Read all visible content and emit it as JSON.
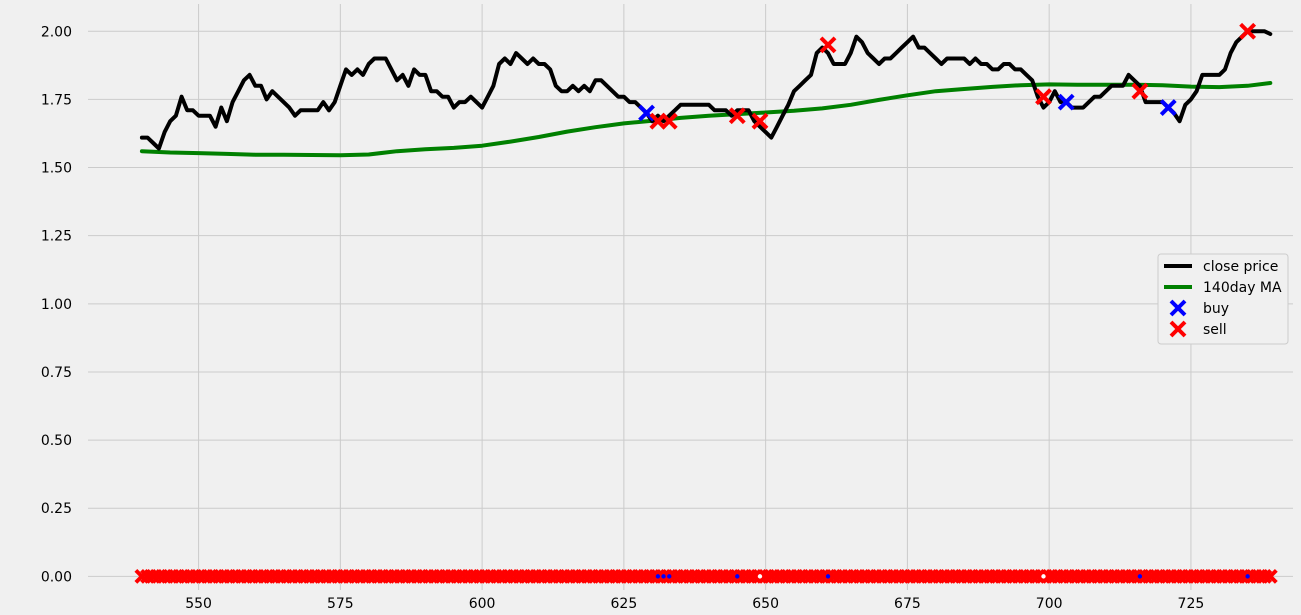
{
  "chart_data": {
    "type": "line",
    "style": "fivethirtyeight",
    "grid": true,
    "legend_position": "right",
    "xlim": [
      538,
      1.0
    ],
    "ylim": [
      -0.1,
      2.1
    ],
    "x_ticks": [
      550,
      575,
      600,
      625,
      650,
      675,
      700,
      725
    ],
    "y_ticks": [
      0.0,
      0.25,
      0.5,
      0.75,
      1.0,
      1.25,
      1.5,
      1.75,
      2.0
    ],
    "x_tick_labels": [
      "550",
      "575",
      "600",
      "625",
      "650",
      "675",
      "700",
      "725"
    ],
    "y_tick_labels": [
      "0.00",
      "0.25",
      "0.50",
      "0.75",
      "1.00",
      "1.25",
      "1.50",
      "1.75",
      "2.00"
    ],
    "colors": {
      "close": "#000000",
      "ma": "#008000",
      "buy": "#0000ff",
      "sell": "#ff0000",
      "background": "#f0f0f0",
      "grid": "#cbcbcb"
    },
    "legend": [
      {
        "label": "close price",
        "kind": "line",
        "color": "#000000"
      },
      {
        "label": "140day MA",
        "kind": "line",
        "color": "#008000"
      },
      {
        "label": "buy",
        "kind": "marker",
        "color": "#0000ff"
      },
      {
        "label": "sell",
        "kind": "marker",
        "color": "#ff0000"
      }
    ],
    "series": [
      {
        "name": "close price",
        "points": [
          [
            540,
            1.61
          ],
          [
            541,
            1.61
          ],
          [
            542,
            1.59
          ],
          [
            543,
            1.57
          ],
          [
            544,
            1.63
          ],
          [
            545,
            1.67
          ],
          [
            546,
            1.69
          ],
          [
            547,
            1.76
          ],
          [
            548,
            1.71
          ],
          [
            549,
            1.71
          ],
          [
            550,
            1.69
          ],
          [
            551,
            1.69
          ],
          [
            552,
            1.69
          ],
          [
            553,
            1.65
          ],
          [
            554,
            1.72
          ],
          [
            555,
            1.67
          ],
          [
            556,
            1.74
          ],
          [
            557,
            1.78
          ],
          [
            558,
            1.82
          ],
          [
            559,
            1.84
          ],
          [
            560,
            1.8
          ],
          [
            561,
            1.8
          ],
          [
            562,
            1.75
          ],
          [
            563,
            1.78
          ],
          [
            564,
            1.76
          ],
          [
            565,
            1.74
          ],
          [
            566,
            1.72
          ],
          [
            567,
            1.69
          ],
          [
            568,
            1.71
          ],
          [
            569,
            1.71
          ],
          [
            570,
            1.71
          ],
          [
            571,
            1.71
          ],
          [
            572,
            1.74
          ],
          [
            573,
            1.71
          ],
          [
            574,
            1.74
          ],
          [
            575,
            1.8
          ],
          [
            576,
            1.86
          ],
          [
            577,
            1.84
          ],
          [
            578,
            1.86
          ],
          [
            579,
            1.84
          ],
          [
            580,
            1.88
          ],
          [
            581,
            1.9
          ],
          [
            582,
            1.9
          ],
          [
            583,
            1.9
          ],
          [
            584,
            1.86
          ],
          [
            585,
            1.82
          ],
          [
            586,
            1.84
          ],
          [
            587,
            1.8
          ],
          [
            588,
            1.86
          ],
          [
            589,
            1.84
          ],
          [
            590,
            1.84
          ],
          [
            591,
            1.78
          ],
          [
            592,
            1.78
          ],
          [
            593,
            1.76
          ],
          [
            594,
            1.76
          ],
          [
            595,
            1.72
          ],
          [
            596,
            1.74
          ],
          [
            597,
            1.74
          ],
          [
            598,
            1.76
          ],
          [
            599,
            1.74
          ],
          [
            600,
            1.72
          ],
          [
            601,
            1.76
          ],
          [
            602,
            1.8
          ],
          [
            603,
            1.88
          ],
          [
            604,
            1.9
          ],
          [
            605,
            1.88
          ],
          [
            606,
            1.92
          ],
          [
            607,
            1.9
          ],
          [
            608,
            1.88
          ],
          [
            609,
            1.9
          ],
          [
            610,
            1.88
          ],
          [
            611,
            1.88
          ],
          [
            612,
            1.86
          ],
          [
            613,
            1.8
          ],
          [
            614,
            1.78
          ],
          [
            615,
            1.78
          ],
          [
            616,
            1.8
          ],
          [
            617,
            1.78
          ],
          [
            618,
            1.8
          ],
          [
            619,
            1.78
          ],
          [
            620,
            1.82
          ],
          [
            621,
            1.82
          ],
          [
            622,
            1.8
          ],
          [
            623,
            1.78
          ],
          [
            624,
            1.76
          ],
          [
            625,
            1.76
          ],
          [
            626,
            1.74
          ],
          [
            627,
            1.74
          ],
          [
            628,
            1.72
          ],
          [
            629,
            1.7
          ],
          [
            630,
            1.67
          ],
          [
            631,
            1.69
          ],
          [
            632,
            1.67
          ],
          [
            633,
            1.69
          ],
          [
            634,
            1.71
          ],
          [
            635,
            1.73
          ],
          [
            636,
            1.73
          ],
          [
            637,
            1.73
          ],
          [
            638,
            1.73
          ],
          [
            639,
            1.73
          ],
          [
            640,
            1.73
          ],
          [
            641,
            1.71
          ],
          [
            642,
            1.71
          ],
          [
            643,
            1.71
          ],
          [
            644,
            1.69
          ],
          [
            645,
            1.71
          ],
          [
            646,
            1.71
          ],
          [
            647,
            1.71
          ],
          [
            648,
            1.67
          ],
          [
            649,
            1.65
          ],
          [
            650,
            1.63
          ],
          [
            651,
            1.61
          ],
          [
            652,
            1.65
          ],
          [
            653,
            1.69
          ],
          [
            654,
            1.73
          ],
          [
            655,
            1.78
          ],
          [
            656,
            1.8
          ],
          [
            657,
            1.82
          ],
          [
            658,
            1.84
          ],
          [
            659,
            1.92
          ],
          [
            660,
            1.94
          ],
          [
            661,
            1.92
          ],
          [
            662,
            1.88
          ],
          [
            663,
            1.88
          ],
          [
            664,
            1.88
          ],
          [
            665,
            1.92
          ],
          [
            666,
            1.98
          ],
          [
            667,
            1.96
          ],
          [
            668,
            1.92
          ],
          [
            669,
            1.9
          ],
          [
            670,
            1.88
          ],
          [
            671,
            1.9
          ],
          [
            672,
            1.9
          ],
          [
            673,
            1.92
          ],
          [
            674,
            1.94
          ],
          [
            675,
            1.96
          ],
          [
            676,
            1.98
          ],
          [
            677,
            1.94
          ],
          [
            678,
            1.94
          ],
          [
            679,
            1.92
          ],
          [
            680,
            1.9
          ],
          [
            681,
            1.88
          ],
          [
            682,
            1.9
          ],
          [
            683,
            1.9
          ],
          [
            684,
            1.9
          ],
          [
            685,
            1.9
          ],
          [
            686,
            1.88
          ],
          [
            687,
            1.9
          ],
          [
            688,
            1.88
          ],
          [
            689,
            1.88
          ],
          [
            690,
            1.86
          ],
          [
            691,
            1.86
          ],
          [
            692,
            1.88
          ],
          [
            693,
            1.88
          ],
          [
            694,
            1.86
          ],
          [
            695,
            1.86
          ],
          [
            696,
            1.84
          ],
          [
            697,
            1.82
          ],
          [
            698,
            1.76
          ],
          [
            699,
            1.72
          ],
          [
            700,
            1.74
          ],
          [
            701,
            1.78
          ],
          [
            702,
            1.74
          ],
          [
            703,
            1.74
          ],
          [
            704,
            1.72
          ],
          [
            705,
            1.72
          ],
          [
            706,
            1.72
          ],
          [
            707,
            1.74
          ],
          [
            708,
            1.76
          ],
          [
            709,
            1.76
          ],
          [
            710,
            1.78
          ],
          [
            711,
            1.8
          ],
          [
            712,
            1.8
          ],
          [
            713,
            1.8
          ],
          [
            714,
            1.84
          ],
          [
            715,
            1.82
          ],
          [
            716,
            1.8
          ],
          [
            717,
            1.74
          ],
          [
            718,
            1.74
          ],
          [
            719,
            1.74
          ],
          [
            720,
            1.74
          ],
          [
            721,
            1.72
          ],
          [
            722,
            1.7
          ],
          [
            723,
            1.67
          ],
          [
            724,
            1.73
          ],
          [
            725,
            1.75
          ],
          [
            726,
            1.78
          ],
          [
            727,
            1.84
          ],
          [
            728,
            1.84
          ],
          [
            729,
            1.84
          ],
          [
            730,
            1.84
          ],
          [
            731,
            1.86
          ],
          [
            732,
            1.92
          ],
          [
            733,
            1.96
          ],
          [
            734,
            1.98
          ],
          [
            735,
            2.0
          ],
          [
            736,
            2.0
          ],
          [
            737,
            2.0
          ],
          [
            738,
            2.0
          ],
          [
            739,
            1.99
          ]
        ]
      },
      {
        "name": "140day MA",
        "points": [
          [
            540,
            1.56
          ],
          [
            545,
            1.555
          ],
          [
            550,
            1.553
          ],
          [
            555,
            1.55
          ],
          [
            560,
            1.547
          ],
          [
            565,
            1.547
          ],
          [
            570,
            1.546
          ],
          [
            575,
            1.545
          ],
          [
            580,
            1.548
          ],
          [
            585,
            1.56
          ],
          [
            590,
            1.567
          ],
          [
            595,
            1.572
          ],
          [
            600,
            1.58
          ],
          [
            605,
            1.595
          ],
          [
            610,
            1.612
          ],
          [
            615,
            1.632
          ],
          [
            620,
            1.648
          ],
          [
            625,
            1.662
          ],
          [
            630,
            1.672
          ],
          [
            635,
            1.682
          ],
          [
            640,
            1.69
          ],
          [
            645,
            1.696
          ],
          [
            650,
            1.702
          ],
          [
            655,
            1.708
          ],
          [
            660,
            1.717
          ],
          [
            665,
            1.73
          ],
          [
            670,
            1.748
          ],
          [
            675,
            1.765
          ],
          [
            680,
            1.78
          ],
          [
            685,
            1.788
          ],
          [
            690,
            1.796
          ],
          [
            695,
            1.802
          ],
          [
            700,
            1.805
          ],
          [
            705,
            1.804
          ],
          [
            710,
            1.804
          ],
          [
            715,
            1.804
          ],
          [
            720,
            1.802
          ],
          [
            725,
            1.797
          ],
          [
            730,
            1.795
          ],
          [
            735,
            1.8
          ],
          [
            739,
            1.81
          ]
        ]
      }
    ],
    "buy_signals": [
      [
        629,
        1.7
      ],
      [
        703,
        1.74
      ],
      [
        721,
        1.72
      ]
    ],
    "sell_signals": [
      [
        631,
        1.67
      ],
      [
        633,
        1.67
      ],
      [
        645,
        1.69
      ],
      [
        649,
        1.67
      ],
      [
        661,
        1.95
      ],
      [
        699,
        1.76
      ],
      [
        716,
        1.78
      ],
      [
        735,
        2.0
      ]
    ],
    "zero_row": {
      "y": 0.0,
      "x_range": [
        540,
        739
      ],
      "marker": "sell",
      "dots": [
        [
          631,
          "#0000ff"
        ],
        [
          632,
          "#0000ff"
        ],
        [
          633,
          "#0000ff"
        ],
        [
          645,
          "#0000ff"
        ],
        [
          649,
          "#ffffff"
        ],
        [
          661,
          "#0000ff"
        ],
        [
          699,
          "#ffffff"
        ],
        [
          716,
          "#0000ff"
        ],
        [
          735,
          "#0000ff"
        ]
      ]
    }
  }
}
